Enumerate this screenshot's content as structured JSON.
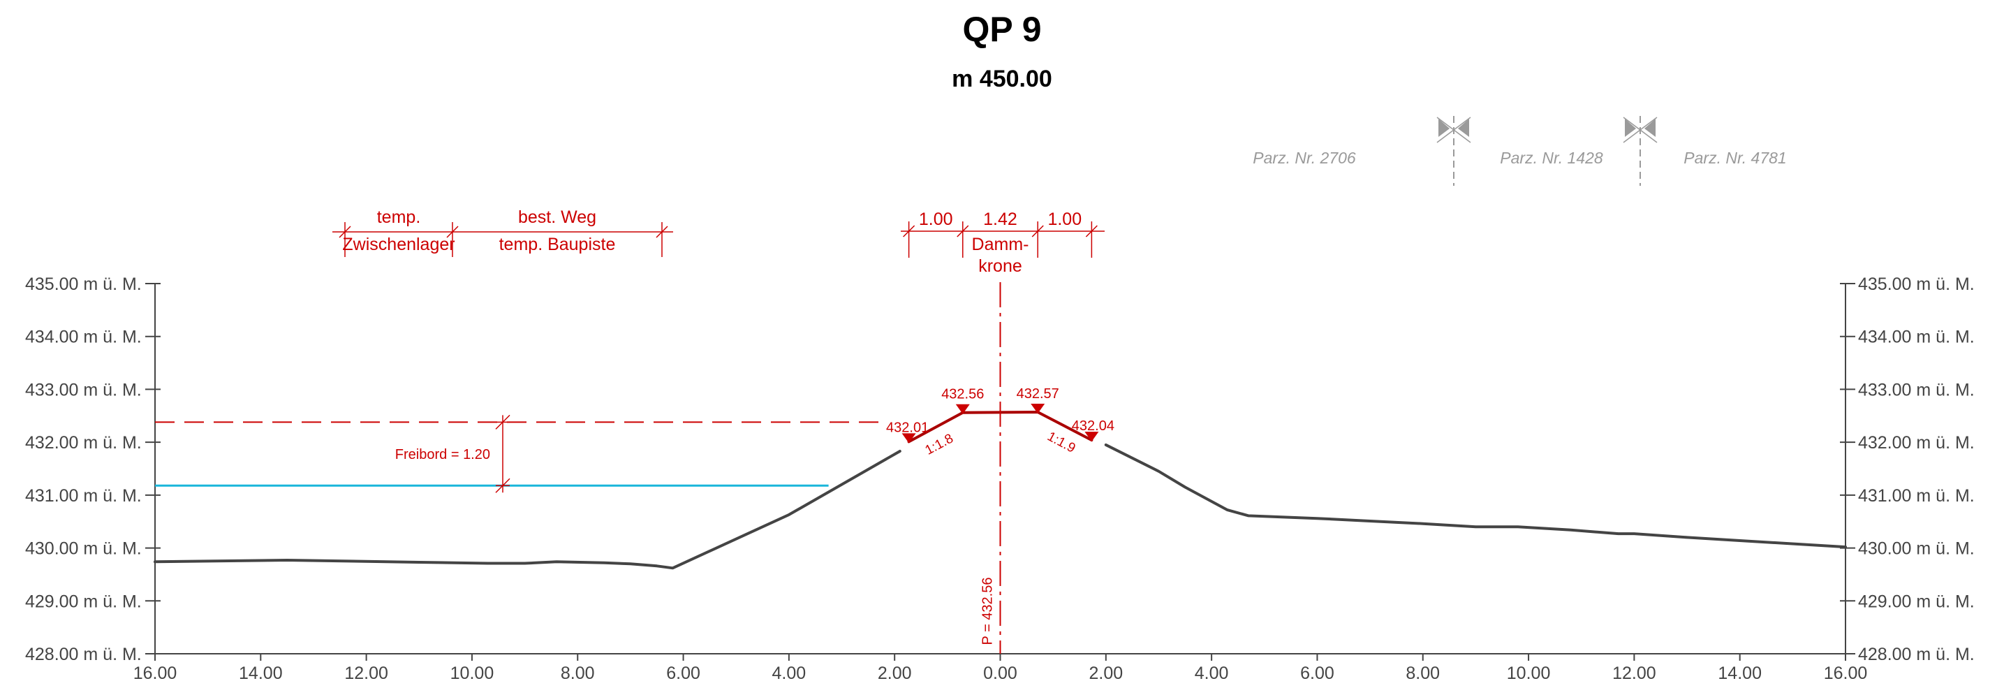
{
  "title": "QP 9",
  "subtitle": "m 450.00",
  "colors": {
    "terrain": "#444444",
    "design": "#cc0000",
    "water": "#1ab6da",
    "axis": "#444444",
    "parcel": "#9a9a9a"
  },
  "parcels": [
    "Parz. Nr. 2706",
    "Parz. Nr. 1428",
    "Parz. Nr. 4781"
  ],
  "parcel_markers": [
    "parcel-boundary-1",
    "parcel-boundary-2"
  ],
  "chart_data": {
    "type": "line",
    "xlim": [
      -16,
      16
    ],
    "ylim": [
      428,
      435
    ],
    "x_ticks": [
      -16,
      -14,
      -12,
      -10,
      -8,
      -6,
      -4,
      -2,
      0,
      2,
      4,
      6,
      8,
      10,
      12,
      14,
      16
    ],
    "x_tick_labels": [
      "16.00",
      "14.00",
      "12.00",
      "10.00",
      "8.00",
      "6.00",
      "4.00",
      "2.00",
      "0.00",
      "2.00",
      "4.00",
      "6.00",
      "8.00",
      "10.00",
      "12.00",
      "14.00",
      "16.00"
    ],
    "y_ticks": [
      428,
      429,
      430,
      431,
      432,
      433,
      434,
      435
    ],
    "y_tick_labels": [
      "428.00 m ü. M.",
      "429.00 m ü. M.",
      "430.00 m ü. M.",
      "431.00 m ü. M.",
      "432.00 m ü. M.",
      "433.00 m ü. M.",
      "434.00 m ü. M.",
      "435.00 m ü. M."
    ],
    "terrain": {
      "x": [
        -16,
        -13.5,
        -11,
        -9.7,
        -9,
        -8.4,
        -7.5,
        -7,
        -6.5,
        -6.2,
        -4,
        -1.9
      ],
      "y": [
        429.74,
        429.77,
        429.73,
        429.71,
        429.71,
        429.74,
        429.72,
        429.7,
        429.66,
        429.62,
        430.63,
        431.83
      ]
    },
    "terrain_right": {
      "x": [
        2.0,
        3.0,
        3.5,
        4.3,
        4.7,
        6,
        7,
        8,
        9,
        9.8,
        10.8,
        11.7,
        12,
        13,
        14,
        16
      ],
      "y": [
        431.95,
        431.45,
        431.15,
        430.72,
        430.61,
        430.56,
        430.51,
        430.46,
        430.4,
        430.4,
        430.34,
        430.27,
        430.27,
        430.2,
        430.14,
        430.02
      ]
    },
    "dam": {
      "x": [
        -1.73,
        -0.71,
        0.71,
        1.73
      ],
      "y": [
        432.01,
        432.56,
        432.57,
        432.04
      ]
    },
    "freeboard_level": 432.38,
    "water_level": 431.18,
    "water_extent_x": [
      -16,
      -3.25
    ],
    "axis_x": 0,
    "height_points": [
      {
        "label": "432.01",
        "x": -1.73,
        "y": 432.01
      },
      {
        "label": "432.56",
        "x": -0.71,
        "y": 432.56
      },
      {
        "label": "432.57",
        "x": 0.71,
        "y": 432.57
      },
      {
        "label": "432.04",
        "x": 1.73,
        "y": 432.04
      }
    ],
    "slope_labels": [
      {
        "label": "1:1.8",
        "x": -1.12,
        "y": 432.18
      },
      {
        "label": "1:1.9",
        "x": 1.12,
        "y": 432.22
      }
    ],
    "annotations": {
      "freeboard": "Freibord = 1.20",
      "axis_label": "P = 432.56"
    },
    "top_dims_left": [
      {
        "line1": "temp.",
        "line2": "Zwischenlager"
      },
      {
        "line1": "best. Weg",
        "line2": "temp. Baupiste"
      }
    ],
    "top_dims_right": [
      "1.00",
      "1.42",
      "1.00"
    ],
    "crest_label": [
      "Damm-",
      "krone"
    ]
  }
}
